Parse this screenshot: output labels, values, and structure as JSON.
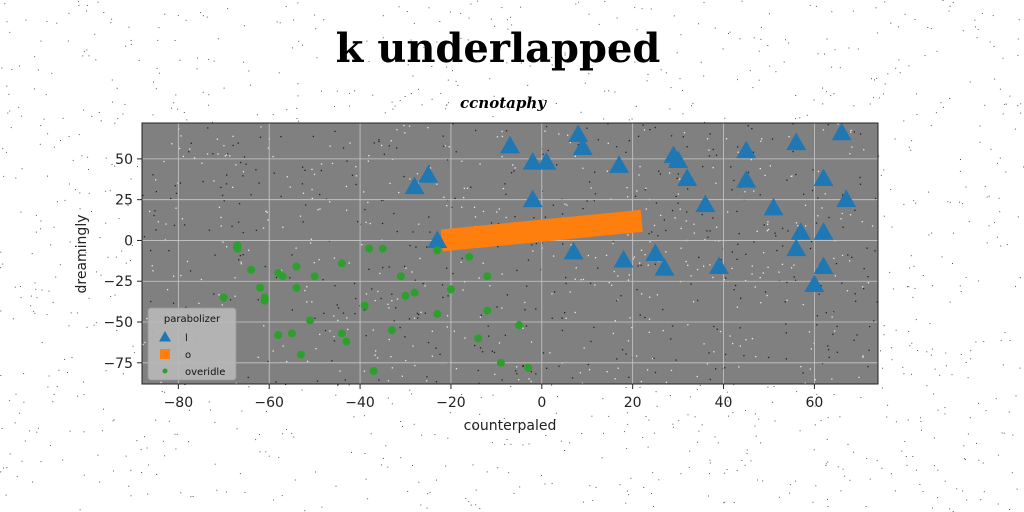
{
  "chart_data": {
    "type": "scatter",
    "title": "k underlapped",
    "subtitle": "ccnotaphy",
    "xlabel": "counterpaled",
    "ylabel": "dreamingly",
    "xlim": [
      -88,
      74
    ],
    "ylim": [
      -88,
      72
    ],
    "xticks": [
      -80,
      -60,
      -40,
      -20,
      0,
      20,
      40,
      60
    ],
    "yticks": [
      -75,
      -50,
      -25,
      0,
      25,
      50
    ],
    "grid": true,
    "legend": {
      "title": "parabolizer",
      "placement": "lower-left"
    },
    "colors": {
      "plot_bg": "#808080",
      "grid": "#c8c8c8"
    },
    "series": [
      {
        "name": "l",
        "marker": "triangle",
        "color": "#1f77b4",
        "points": [
          [
            -28,
            33
          ],
          [
            -25,
            40
          ],
          [
            -7,
            58
          ],
          [
            -2,
            48
          ],
          [
            1,
            48
          ],
          [
            -2,
            25
          ],
          [
            -23,
            0
          ],
          [
            8,
            65
          ],
          [
            9,
            57
          ],
          [
            17,
            46
          ],
          [
            7,
            -7
          ],
          [
            18,
            -12
          ],
          [
            29,
            52
          ],
          [
            30,
            49
          ],
          [
            32,
            38
          ],
          [
            36,
            22
          ],
          [
            25,
            -8
          ],
          [
            27,
            -17
          ],
          [
            39,
            -16
          ],
          [
            45,
            55
          ],
          [
            45,
            37
          ],
          [
            51,
            20
          ],
          [
            56,
            60
          ],
          [
            56,
            -5
          ],
          [
            57,
            5
          ],
          [
            62,
            5
          ],
          [
            62,
            38
          ],
          [
            62,
            -16
          ],
          [
            60,
            -27
          ],
          [
            66,
            66
          ],
          [
            67,
            25
          ]
        ]
      },
      {
        "name": "o",
        "marker": "square",
        "color": "#ff7f0e",
        "line": [
          [
            -22,
            0
          ],
          [
            22,
            12
          ]
        ]
      },
      {
        "name": "overidle",
        "marker": "circle",
        "color": "#2ca02c",
        "points": [
          [
            -67,
            -5
          ],
          [
            -67,
            -3
          ],
          [
            -64,
            -18
          ],
          [
            -62,
            -29
          ],
          [
            -61,
            -35
          ],
          [
            -61,
            -37
          ],
          [
            -58,
            -20
          ],
          [
            -57,
            -22
          ],
          [
            -58,
            -58
          ],
          [
            -55,
            -57
          ],
          [
            -54,
            -16
          ],
          [
            -54,
            -29
          ],
          [
            -53,
            -70
          ],
          [
            -51,
            -49
          ],
          [
            -50,
            -22
          ],
          [
            -70,
            -35
          ],
          [
            -44,
            -57
          ],
          [
            -43,
            -62
          ],
          [
            -44,
            -14
          ],
          [
            -38,
            -5
          ],
          [
            -39,
            -40
          ],
          [
            -37,
            -80
          ],
          [
            -35,
            -5
          ],
          [
            -33,
            -55
          ],
          [
            -31,
            -22
          ],
          [
            -30,
            -34
          ],
          [
            -28,
            -32
          ],
          [
            -23,
            -6
          ],
          [
            -23,
            -45
          ],
          [
            -20,
            -30
          ],
          [
            -16,
            -10
          ],
          [
            -14,
            -60
          ],
          [
            -12,
            -22
          ],
          [
            -12,
            -43
          ],
          [
            -9,
            -75
          ],
          [
            -5,
            -52
          ],
          [
            -3,
            -78
          ]
        ]
      }
    ]
  }
}
